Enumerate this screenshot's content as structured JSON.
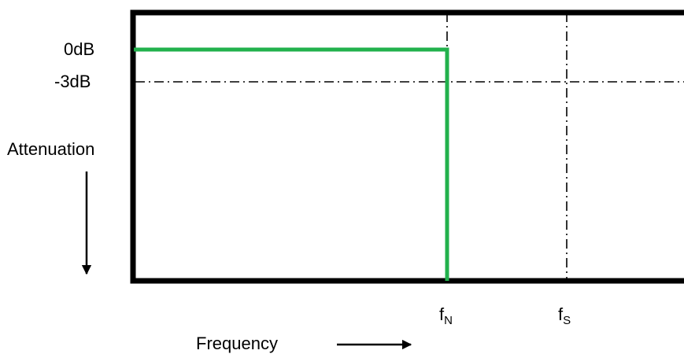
{
  "labels": {
    "zero_db": "0dB",
    "minus_three_db": "-3dB",
    "attenuation": "Attenuation",
    "frequency": "Frequency",
    "f_nyquist_base": "f",
    "f_nyquist_sub": "N",
    "f_sample_base": "f",
    "f_sample_sub": "S"
  },
  "colors": {
    "response_line": "#22b14c",
    "frame": "#000000",
    "guide_lines": "#000000"
  }
}
